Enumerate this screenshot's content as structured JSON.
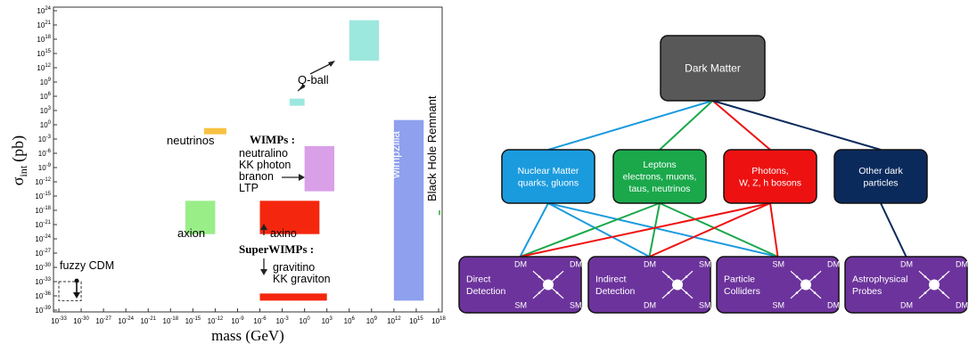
{
  "chart_data": {
    "type": "area",
    "xlabel": "mass (GeV)",
    "ylabel": "σ_int (pb)",
    "ylabel_main": "σ",
    "ylabel_sub": "int",
    "ylabel_unit": "(pb)",
    "x_scale": "log",
    "y_scale": "log",
    "x_exp_range": [
      -33,
      18
    ],
    "y_exp_range": [
      -39,
      24
    ],
    "x_tick_exponents": [
      -33,
      -30,
      -27,
      -24,
      -21,
      -18,
      -15,
      -12,
      -9,
      -6,
      -3,
      0,
      3,
      6,
      9,
      12,
      15,
      18
    ],
    "y_tick_exponents": [
      24,
      21,
      18,
      15,
      12,
      9,
      6,
      3,
      0,
      -3,
      -6,
      -9,
      -12,
      -15,
      -18,
      -21,
      -24,
      -27,
      -30,
      -33,
      -36,
      -39
    ],
    "tick_base": "10",
    "regions": [
      {
        "name": "Q-ball",
        "x_exp": [
          6,
          10
        ],
        "y_exp": [
          13.5,
          22
        ],
        "color": "#9ce8de"
      },
      {
        "name": "Q-ball small",
        "x_exp": [
          -2,
          0
        ],
        "y_exp": [
          4,
          5.5
        ],
        "color": "#9ce8de"
      },
      {
        "name": "neutrinos",
        "x_exp": [
          -13.5,
          -10.5
        ],
        "y_exp": [
          -2,
          -0.7
        ],
        "color": "#f7c242"
      },
      {
        "name": "WIMPs",
        "x_exp": [
          0,
          4
        ],
        "y_exp": [
          -14,
          -4.5
        ],
        "color": "#d9a0e8"
      },
      {
        "name": "axino",
        "x_exp": [
          -6,
          2
        ],
        "y_exp": [
          -23,
          -16
        ],
        "color": "#f5260e"
      },
      {
        "name": "axion",
        "x_exp": [
          -16,
          -12
        ],
        "y_exp": [
          -23,
          -16
        ],
        "color": "#99ee88"
      },
      {
        "name": "gravitino",
        "x_exp": [
          -6,
          3
        ],
        "y_exp": [
          -37,
          -35.5
        ],
        "color": "#f5260e"
      },
      {
        "name": "wimpzilla",
        "x_exp": [
          12,
          16
        ],
        "y_exp": [
          -37,
          1
        ],
        "color": "#8fa0ee"
      },
      {
        "name": "Black Hole Remnant",
        "x_exp": [
          18,
          22
        ],
        "y_exp": [
          -19,
          -18
        ],
        "color": "#66c066"
      },
      {
        "name": "fuzzy CDM",
        "x_exp": [
          -33,
          -30
        ],
        "y_exp": [
          -37,
          -33
        ],
        "color": "none"
      }
    ],
    "labels": {
      "q_ball": "Q-ball",
      "neutrinos": "neutrinos",
      "wimps_heading": "WIMPs :",
      "wimps_items": [
        "neutralino",
        "KK photon",
        "branon",
        "LTP"
      ],
      "axino": "axino",
      "axion": "axion",
      "superwimps_heading": "SuperWIMPs :",
      "superwimps_items": [
        "gravitino",
        "KK graviton"
      ],
      "wimpzilla": "wimpzilla",
      "black_hole": "Black Hole Remnant",
      "fuzzy_cdm": "fuzzy CDM"
    }
  },
  "diagram": {
    "root": {
      "label": "Dark Matter",
      "color": "#585858"
    },
    "categories": [
      {
        "lines": [
          "Nuclear Matter",
          "quarks, gluons"
        ],
        "color": "#1a9bde",
        "text_color": "#ffffff"
      },
      {
        "lines": [
          "Leptons",
          "electrons, muons,",
          "taus, neutrinos"
        ],
        "color": "#1aa84b",
        "text_color": "#ffffff"
      },
      {
        "lines": [
          "Photons,",
          "W, Z, h bosons"
        ],
        "color": "#ee1111",
        "text_color": "#ffffff"
      },
      {
        "lines": [
          "Other dark",
          "particles"
        ],
        "color": "#0b2a5c",
        "text_color": "#ffffff"
      }
    ],
    "methods": [
      {
        "lines": [
          "Direct",
          "Detection"
        ],
        "corners": [
          "DM",
          "DM",
          "SM",
          "SM"
        ]
      },
      {
        "lines": [
          "Indirect",
          "Detection"
        ],
        "corners": [
          "DM",
          "SM",
          "DM",
          "SM"
        ]
      },
      {
        "lines": [
          "Particle",
          "Colliders"
        ],
        "corners": [
          "SM",
          "DM",
          "SM",
          "DM"
        ]
      },
      {
        "lines": [
          "Astrophysical",
          "Probes"
        ],
        "corners": [
          "DM",
          "DM",
          "DM",
          "DM"
        ]
      }
    ],
    "method_color": "#6c339c",
    "link_colors": {
      "nuclear": "#1a9bde",
      "leptons": "#1aa84b",
      "photons": "#ee1111",
      "other": "#0b2a5c"
    }
  }
}
